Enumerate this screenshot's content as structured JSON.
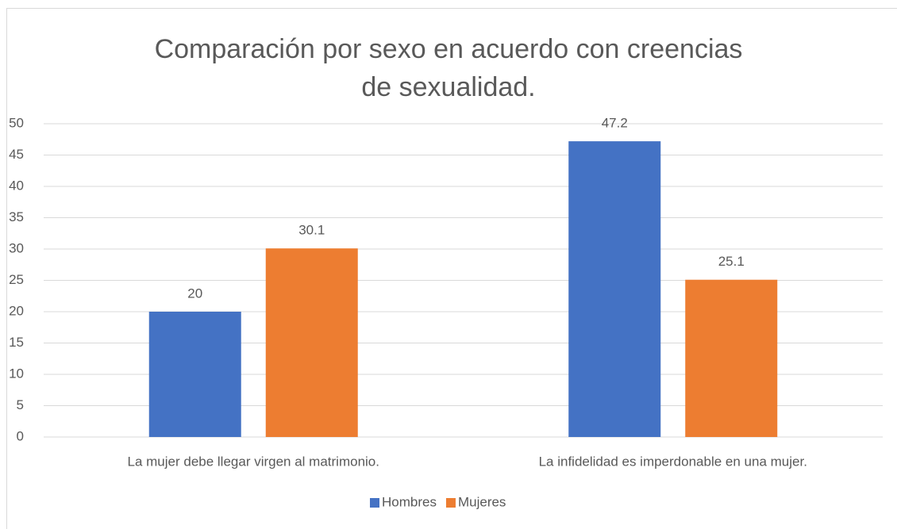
{
  "chart_data": {
    "type": "bar",
    "title": "Comparación por sexo en acuerdo con creencias de sexualidad.",
    "categories": [
      "La mujer debe llegar virgen al matrimonio.",
      "La infidelidad es imperdonable en una mujer."
    ],
    "series": [
      {
        "name": "Hombres",
        "color": "#4472c4",
        "values": [
          20,
          47.2
        ]
      },
      {
        "name": "Mujeres",
        "color": "#ed7d31",
        "values": [
          30.1,
          25.1
        ]
      }
    ],
    "ylim": [
      0,
      50
    ],
    "yticks": [
      0,
      5,
      10,
      15,
      20,
      25,
      30,
      35,
      40,
      45,
      50
    ],
    "grid": true,
    "legend": "bottom"
  }
}
